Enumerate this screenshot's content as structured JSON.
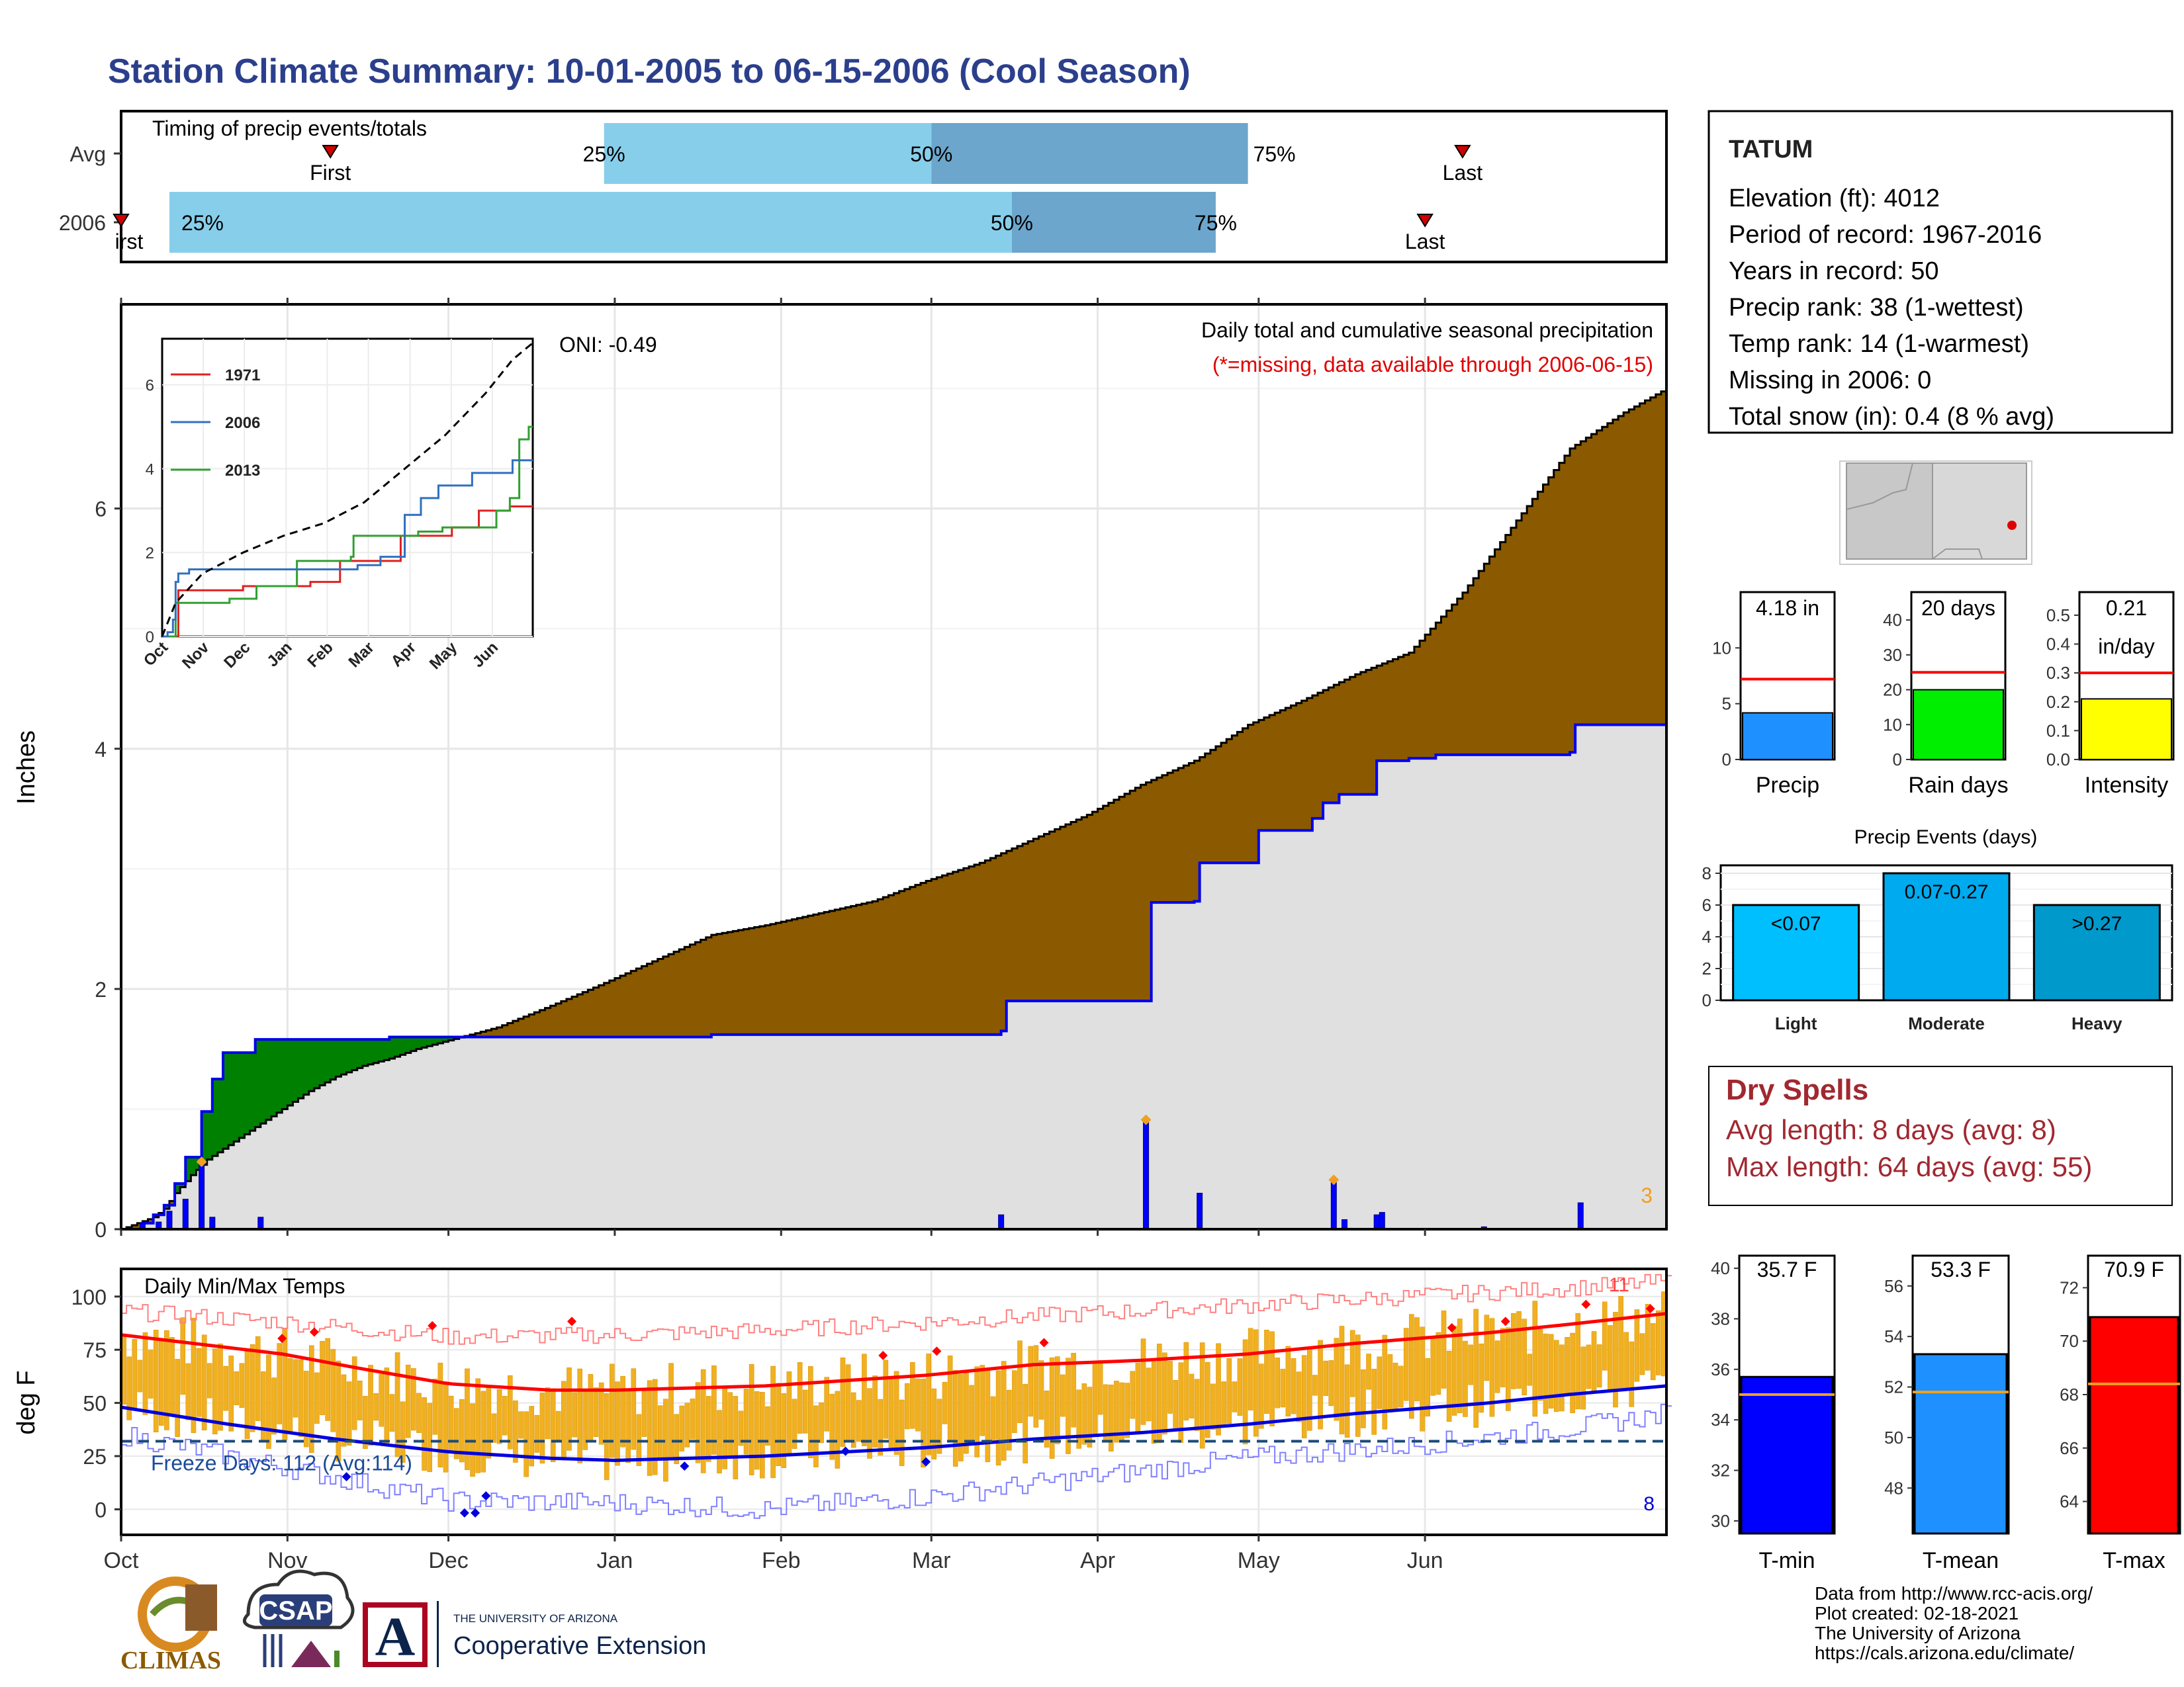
{
  "page": {
    "title": "Station Climate Summary: 10-01-2005 to 06-15-2006 (Cool Season)"
  },
  "station": {
    "name": "TATUM",
    "lines": [
      "Elevation (ft): 4012",
      "Period of record: 1967-2016",
      "Years in record: 50",
      "Precip rank: 38 (1-wettest)",
      "Temp rank: 14 (1-warmest)",
      "Missing in 2006: 0",
      "Total snow (in): 0.4 (8 % avg)"
    ]
  },
  "dry_spells": {
    "title": "Dry Spells",
    "avg": "Avg length: 8 days (avg: 8)",
    "max": "Max length: 64 days (avg: 55)"
  },
  "footer": {
    "lines": [
      "Data from http://www.rcc-acis.org/",
      "Plot created: 02-18-2021",
      "The University of Arizona",
      "https://cals.arizona.edu/climate/"
    ],
    "logos": {
      "climas": "CLIMAS",
      "csap": "CSAP",
      "ua_small": "THE UNIVERSITY OF ARIZONA",
      "ua_big": "Cooperative Extension",
      "ua_letter": "A"
    }
  },
  "colors": {
    "title": "#2b3f8c",
    "cum_fill": "#8b5a00",
    "cum_deficit": "#008000",
    "avg_fill": "#e0e0e0",
    "precip_bar": "#0000ff",
    "temp_bar": "#f0b020",
    "tmax_line": "#ff0000",
    "tmin_line": "#0000dd"
  },
  "chart_data": [
    {
      "id": "timing",
      "type": "bar",
      "title": "Timing of precip events/totals",
      "rows": [
        {
          "label": "Avg",
          "first": "11-09",
          "p25": "12-30",
          "p50": "03-01",
          "p75": "04-29",
          "last": "06-08"
        },
        {
          "label": "2006",
          "first": "10-01",
          "p25": "10-10",
          "p50": "03-16",
          "p75": "04-23",
          "last": "06-01"
        }
      ],
      "marker_labels": {
        "first": "First",
        "first_clipped": "irst",
        "last": "Last",
        "p25": "25%",
        "p50": "50%",
        "p75": "75%"
      }
    },
    {
      "id": "precip",
      "type": "area",
      "title": "Daily total and cumulative seasonal precipitation",
      "subtitle": "(*=missing, data available through 2006-06-15)",
      "oni": "ONI: -0.49",
      "ylabel": "Inches",
      "ylim": [
        0,
        7.7
      ],
      "yticks": [
        0,
        2,
        4,
        6
      ],
      "xticks": [
        "Oct",
        "Nov",
        "Dec",
        "Jan",
        "Feb",
        "Mar",
        "Apr",
        "May",
        "Jun"
      ],
      "corner_count": "3",
      "cum_avg_series": [
        [
          0,
          0
        ],
        [
          3,
          0.05
        ],
        [
          6,
          0.1
        ],
        [
          8,
          0.17
        ],
        [
          10,
          0.3
        ],
        [
          13,
          0.45
        ],
        [
          16,
          0.58
        ],
        [
          20,
          0.7
        ],
        [
          25,
          0.85
        ],
        [
          30,
          1.0
        ],
        [
          35,
          1.15
        ],
        [
          40,
          1.27
        ],
        [
          45,
          1.36
        ],
        [
          50,
          1.42
        ],
        [
          55,
          1.5
        ],
        [
          60,
          1.56
        ],
        [
          70,
          1.68
        ],
        [
          80,
          1.86
        ],
        [
          90,
          2.05
        ],
        [
          100,
          2.25
        ],
        [
          110,
          2.45
        ],
        [
          120,
          2.53
        ],
        [
          130,
          2.63
        ],
        [
          140,
          2.73
        ],
        [
          150,
          2.9
        ],
        [
          160,
          3.05
        ],
        [
          170,
          3.25
        ],
        [
          180,
          3.45
        ],
        [
          190,
          3.7
        ],
        [
          200,
          3.9
        ],
        [
          210,
          4.2
        ],
        [
          220,
          4.4
        ],
        [
          230,
          4.62
        ],
        [
          240,
          4.8
        ],
        [
          250,
          5.3
        ],
        [
          260,
          5.9
        ],
        [
          270,
          6.5
        ],
        [
          280,
          6.8
        ],
        [
          288,
          7.0
        ]
      ],
      "cum_2006_series": [
        [
          0,
          0
        ],
        [
          4,
          0.05
        ],
        [
          6,
          0.12
        ],
        [
          8,
          0.2
        ],
        [
          10,
          0.38
        ],
        [
          12,
          0.6
        ],
        [
          15,
          0.98
        ],
        [
          17,
          1.25
        ],
        [
          19,
          1.47
        ],
        [
          25,
          1.58
        ],
        [
          50,
          1.6
        ],
        [
          110,
          1.62
        ],
        [
          145,
          1.62
        ],
        [
          164,
          1.65
        ],
        [
          165,
          1.9
        ],
        [
          175,
          1.9
        ],
        [
          191,
          1.9
        ],
        [
          192,
          2.72
        ],
        [
          200,
          2.73
        ],
        [
          201,
          3.05
        ],
        [
          211,
          3.05
        ],
        [
          212,
          3.32
        ],
        [
          222,
          3.42
        ],
        [
          224,
          3.55
        ],
        [
          227,
          3.62
        ],
        [
          234,
          3.9
        ],
        [
          240,
          3.92
        ],
        [
          245,
          3.95
        ],
        [
          270,
          3.97
        ],
        [
          271,
          4.2
        ],
        [
          288,
          4.2
        ]
      ],
      "daily_2006": [
        [
          4,
          0.05
        ],
        [
          7,
          0.06
        ],
        [
          9,
          0.15
        ],
        [
          12,
          0.25
        ],
        [
          15,
          0.55
        ],
        [
          17,
          0.1
        ],
        [
          26,
          0.1
        ],
        [
          164,
          0.12
        ],
        [
          191,
          0.9
        ],
        [
          201,
          0.3
        ],
        [
          226,
          0.4
        ],
        [
          228,
          0.08
        ],
        [
          234,
          0.12
        ],
        [
          235,
          0.14
        ],
        [
          254,
          0.02
        ],
        [
          272,
          0.22
        ]
      ],
      "inset": {
        "series": [
          {
            "name": "1971",
            "color": "#e02020"
          },
          {
            "name": "2006",
            "color": "#3070c0"
          },
          {
            "name": "2013",
            "color": "#30a030"
          }
        ],
        "xticks": [
          "Oct",
          "Nov",
          "Dec",
          "Jan",
          "Feb",
          "Mar",
          "Apr",
          "May",
          "Jun"
        ],
        "yticks": [
          0,
          2,
          4,
          6
        ],
        "ylim": [
          0,
          7.1
        ],
        "avg": [
          [
            0,
            0.0
          ],
          [
            10,
            0.8
          ],
          [
            30,
            1.5
          ],
          [
            60,
            2.0
          ],
          [
            90,
            2.4
          ],
          [
            120,
            2.7
          ],
          [
            150,
            3.2
          ],
          [
            180,
            4.0
          ],
          [
            210,
            4.8
          ],
          [
            240,
            5.8
          ],
          [
            260,
            6.6
          ],
          [
            275,
            7.0
          ]
        ],
        "s1971": [
          [
            0,
            0
          ],
          [
            10,
            0
          ],
          [
            12,
            1.1
          ],
          [
            20,
            1.1
          ],
          [
            50,
            1.1
          ],
          [
            58,
            1.1
          ],
          [
            60,
            1.2
          ],
          [
            80,
            1.2
          ],
          [
            82,
            1.2
          ],
          [
            100,
            1.2
          ],
          [
            110,
            1.3
          ],
          [
            130,
            1.3
          ],
          [
            132,
            1.8
          ],
          [
            140,
            1.8
          ],
          [
            160,
            1.8
          ],
          [
            175,
            1.8
          ],
          [
            177,
            2.4
          ],
          [
            200,
            2.4
          ],
          [
            215,
            2.6
          ],
          [
            222,
            2.6
          ],
          [
            230,
            2.6
          ],
          [
            235,
            3.0
          ],
          [
            243,
            3.0
          ],
          [
            250,
            3.0
          ],
          [
            255,
            3.0
          ],
          [
            258,
            3.1
          ],
          [
            275,
            3.1
          ]
        ],
        "s2006": [
          [
            0,
            0
          ],
          [
            4,
            0.1
          ],
          [
            8,
            0.4
          ],
          [
            10,
            1.3
          ],
          [
            12,
            1.5
          ],
          [
            20,
            1.6
          ],
          [
            110,
            1.6
          ],
          [
            130,
            1.6
          ],
          [
            145,
            1.7
          ],
          [
            160,
            1.7
          ],
          [
            162,
            1.9
          ],
          [
            178,
            1.9
          ],
          [
            180,
            2.9
          ],
          [
            190,
            2.9
          ],
          [
            192,
            3.3
          ],
          [
            202,
            3.3
          ],
          [
            205,
            3.6
          ],
          [
            230,
            3.9
          ],
          [
            245,
            3.9
          ],
          [
            260,
            4.2
          ],
          [
            275,
            4.2
          ]
        ],
        "s2013": [
          [
            0,
            0
          ],
          [
            8,
            0
          ],
          [
            10,
            0.8
          ],
          [
            30,
            0.8
          ],
          [
            50,
            0.9
          ],
          [
            68,
            0.9
          ],
          [
            70,
            1.2
          ],
          [
            90,
            1.2
          ],
          [
            100,
            1.8
          ],
          [
            120,
            1.8
          ],
          [
            140,
            1.9
          ],
          [
            142,
            2.4
          ],
          [
            165,
            2.4
          ],
          [
            190,
            2.5
          ],
          [
            205,
            2.5
          ],
          [
            208,
            2.6
          ],
          [
            245,
            2.6
          ],
          [
            248,
            3.0
          ],
          [
            255,
            3.0
          ],
          [
            258,
            3.3
          ],
          [
            262,
            3.3
          ],
          [
            265,
            4.7
          ],
          [
            270,
            4.7
          ],
          [
            272,
            5.0
          ],
          [
            275,
            5.0
          ]
        ]
      }
    },
    {
      "id": "temps",
      "type": "bar",
      "title": "Daily Min/Max Temps",
      "ylabel": "deg F",
      "ylim": [
        -12,
        113
      ],
      "yticks": [
        0,
        25,
        50,
        75,
        100
      ],
      "xticks": [
        "Oct",
        "Nov",
        "Dec",
        "Jan",
        "Feb",
        "Mar",
        "Apr",
        "May",
        "Jun"
      ],
      "freeze_line": 32,
      "freeze_label": "Freeze Days: 112 (Avg:114)",
      "max_record_count": "11",
      "min_record_count": "8",
      "tmax_avg": [
        [
          0,
          82
        ],
        [
          30,
          73
        ],
        [
          45,
          66
        ],
        [
          61,
          59
        ],
        [
          80,
          56
        ],
        [
          92,
          56
        ],
        [
          120,
          58
        ],
        [
          150,
          63
        ],
        [
          170,
          68
        ],
        [
          190,
          70
        ],
        [
          210,
          73
        ],
        [
          230,
          78
        ],
        [
          255,
          83
        ],
        [
          270,
          87
        ],
        [
          288,
          92
        ]
      ],
      "tmin_avg": [
        [
          0,
          48
        ],
        [
          20,
          40
        ],
        [
          40,
          33
        ],
        [
          61,
          27
        ],
        [
          80,
          24
        ],
        [
          92,
          23
        ],
        [
          120,
          25
        ],
        [
          150,
          29
        ],
        [
          170,
          33
        ],
        [
          190,
          36
        ],
        [
          210,
          40
        ],
        [
          230,
          45
        ],
        [
          255,
          50
        ],
        [
          270,
          54
        ],
        [
          288,
          58
        ]
      ],
      "record_max": [
        [
          0,
          93
        ],
        [
          30,
          88
        ],
        [
          61,
          81
        ],
        [
          92,
          82
        ],
        [
          120,
          84
        ],
        [
          150,
          88
        ],
        [
          180,
          92
        ],
        [
          210,
          96
        ],
        [
          240,
          100
        ],
        [
          270,
          104
        ],
        [
          288,
          107
        ]
      ],
      "record_min": [
        [
          0,
          35
        ],
        [
          30,
          20
        ],
        [
          61,
          4
        ],
        [
          92,
          3
        ],
        [
          120,
          0
        ],
        [
          150,
          6
        ],
        [
          180,
          15
        ],
        [
          210,
          24
        ],
        [
          240,
          30
        ],
        [
          270,
          38
        ],
        [
          288,
          45
        ]
      ]
    },
    {
      "id": "totals",
      "type": "bar",
      "categories": [
        "Precip",
        "Rain days",
        "Intensity"
      ],
      "values": [
        4.18,
        20,
        0.21
      ],
      "averages": [
        7.2,
        25,
        0.3
      ],
      "labels": [
        "4.18 in",
        "20 days",
        "0.21"
      ],
      "sublabel": "in/day",
      "ylims": [
        [
          0,
          15
        ],
        [
          0,
          48
        ],
        [
          0,
          0.58
        ]
      ],
      "yticks": [
        [
          0,
          5,
          10
        ],
        [
          0,
          10,
          20,
          30,
          40
        ],
        [
          0.0,
          0.1,
          0.2,
          0.3,
          0.4,
          0.5
        ]
      ],
      "colors": [
        "#1e90ff",
        "#00ee00",
        "#ffff00"
      ]
    },
    {
      "id": "events",
      "type": "bar",
      "title": "Precip Events (days)",
      "categories": [
        "Light",
        "Moderate",
        "Heavy"
      ],
      "values": [
        6,
        8,
        6
      ],
      "labels": [
        "<0.07",
        "0.07-0.27",
        ">0.27"
      ],
      "ylim": [
        0,
        8.5
      ],
      "yticks": [
        0,
        2,
        4,
        6,
        8
      ],
      "colors": [
        "#00bfff",
        "#00aaee",
        "#0099cc"
      ]
    },
    {
      "id": "temp_summary",
      "type": "bar",
      "categories": [
        "T-min",
        "T-mean",
        "T-max"
      ],
      "values": [
        35.7,
        53.3,
        70.9
      ],
      "averages": [
        35.0,
        51.8,
        68.4
      ],
      "labels": [
        "35.7 F",
        "53.3 F",
        "70.9 F"
      ],
      "ylims": [
        [
          29.5,
          40.5
        ],
        [
          46.2,
          57.2
        ],
        [
          62.8,
          73.2
        ]
      ],
      "yticks": [
        [
          30,
          32,
          34,
          36,
          38,
          40
        ],
        [
          48,
          50,
          52,
          54,
          56
        ],
        [
          64,
          66,
          68,
          70,
          72
        ]
      ],
      "colors": [
        "#0000ff",
        "#1e90ff",
        "#ff0000"
      ]
    }
  ]
}
